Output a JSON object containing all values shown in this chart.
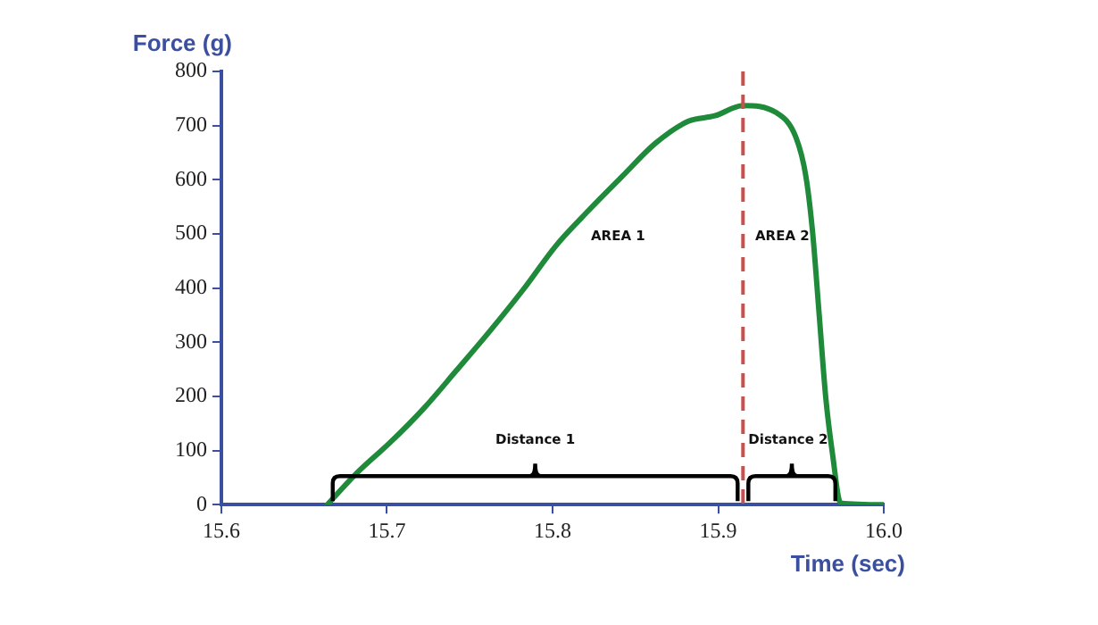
{
  "chart_data": {
    "type": "line",
    "xlabel": "Time (sec)",
    "ylabel": "Force (g)",
    "x": [
      15.664,
      15.682,
      15.702,
      15.722,
      15.742,
      15.762,
      15.782,
      15.802,
      15.822,
      15.842,
      15.862,
      15.882,
      15.898,
      15.915,
      15.935,
      15.947,
      15.953,
      15.957,
      15.961,
      15.965,
      15.969,
      15.974,
      16.0
    ],
    "series": [
      {
        "color": "#1e8a3a",
        "values": [
          0,
          59,
          115,
          177,
          248,
          320,
          396,
          478,
          544,
          606,
          667,
          708,
          718,
          737,
          724,
          678,
          606,
          504,
          351,
          197,
          95,
          3,
          0
        ]
      }
    ],
    "xlim": [
      15.6,
      16.0
    ],
    "xticks": [
      15.6,
      15.7,
      15.8,
      15.9,
      {
        "value": 16.0,
        "label": "16.0"
      }
    ],
    "ylim": [
      0,
      800
    ],
    "yticks": [
      0,
      100,
      200,
      300,
      400,
      500,
      600,
      700,
      800
    ],
    "grid": false,
    "legend": false,
    "marker": "none",
    "line_style": "solid",
    "ref_lines": [
      {
        "axis": "x",
        "value": 15.915,
        "color": "#c8504d",
        "line_style": "dashed"
      }
    ],
    "annotations": [
      "AREA 1",
      "AREA 2",
      "Distance 1",
      "Distance 2"
    ]
  }
}
